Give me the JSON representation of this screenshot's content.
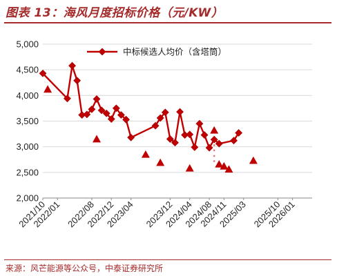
{
  "header": {
    "title": "图表 13：海风月度招标价格（元/KW）"
  },
  "footer": {
    "source": "来源：风芒能源等公众号，中泰证券研究所"
  },
  "colors": {
    "accent": "#a52a2a",
    "series": "#c00000",
    "grid": "#d9d9d9",
    "axis": "#888888"
  },
  "chart_data": {
    "type": "line",
    "title": "",
    "xlabel": "",
    "ylabel": "",
    "ylim": [
      2000,
      5000
    ],
    "yticks": [
      {
        "value": 2000,
        "label": "2,000"
      },
      {
        "value": 2500,
        "label": "2,500"
      },
      {
        "value": 3000,
        "label": "3,000"
      },
      {
        "value": 3500,
        "label": "3,500"
      },
      {
        "value": 4000,
        "label": "4,000"
      },
      {
        "value": 4500,
        "label": "4,500"
      },
      {
        "value": 5000,
        "label": "5,000"
      }
    ],
    "xrange": [
      0,
      55
    ],
    "xticks": [
      {
        "x": 0,
        "label": "2021/10"
      },
      {
        "x": 3,
        "label": "2022/01"
      },
      {
        "x": 10,
        "label": "2022/08"
      },
      {
        "x": 14,
        "label": "2022/12"
      },
      {
        "x": 18,
        "label": "2023/04"
      },
      {
        "x": 26,
        "label": "2023/12"
      },
      {
        "x": 30,
        "label": "2024/04"
      },
      {
        "x": 34,
        "label": "2024/08"
      },
      {
        "x": 37,
        "label": "2024/11"
      },
      {
        "x": 41,
        "label": "2025/03"
      },
      {
        "x": 48,
        "label": "2025/10"
      },
      {
        "x": 51,
        "label": "2026/01"
      }
    ],
    "legend": {
      "position": "top-left"
    },
    "series": [
      {
        "name": "中标候选人均价（含塔筒）",
        "marker": "diamond",
        "points": [
          {
            "x": 0,
            "y": 4430
          },
          {
            "x": 5,
            "y": 3940
          },
          {
            "x": 6,
            "y": 4580
          },
          {
            "x": 7,
            "y": 4290
          },
          {
            "x": 8,
            "y": 3620
          },
          {
            "x": 9,
            "y": 3630
          },
          {
            "x": 10,
            "y": 3730
          },
          {
            "x": 11,
            "y": 3930
          },
          {
            "x": 12,
            "y": 3710
          },
          {
            "x": 13,
            "y": 3650
          },
          {
            "x": 14,
            "y": 3540
          },
          {
            "x": 15,
            "y": 3750
          },
          {
            "x": 16,
            "y": 3620
          },
          {
            "x": 17,
            "y": 3530
          },
          {
            "x": 18,
            "y": 3180
          },
          {
            "x": 23,
            "y": 3410
          },
          {
            "x": 24,
            "y": 3560
          },
          {
            "x": 25,
            "y": 3670
          },
          {
            "x": 26,
            "y": 3150
          },
          {
            "x": 27,
            "y": 3080
          },
          {
            "x": 28,
            "y": 3680
          },
          {
            "x": 29,
            "y": 3230
          },
          {
            "x": 30,
            "y": 3240
          },
          {
            "x": 31,
            "y": 2990
          },
          {
            "x": 32,
            "y": 3450
          },
          {
            "x": 33,
            "y": 3230
          },
          {
            "x": 34,
            "y": 2980
          },
          {
            "x": 35,
            "y": 3140
          },
          {
            "x": 36,
            "y": 3060
          },
          {
            "x": 39,
            "y": 3120
          },
          {
            "x": 40,
            "y": 3270
          }
        ]
      },
      {
        "marker": "triangle",
        "points": [
          {
            "x": 1,
            "y": 4120
          },
          {
            "x": 11,
            "y": 3150
          },
          {
            "x": 21,
            "y": 2850
          },
          {
            "x": 24,
            "y": 2690
          },
          {
            "x": 30,
            "y": 2580
          },
          {
            "x": 35,
            "y": 3320
          },
          {
            "x": 36,
            "y": 2660
          },
          {
            "x": 37,
            "y": 2620
          },
          {
            "x": 38,
            "y": 2560
          },
          {
            "x": 43,
            "y": 2730
          }
        ]
      },
      {
        "marker": "dot",
        "points": [
          {
            "x": 35,
            "y": 3030
          },
          {
            "x": 35,
            "y": 2930
          },
          {
            "x": 35,
            "y": 2820
          },
          {
            "x": 35,
            "y": 2720
          }
        ]
      }
    ]
  }
}
